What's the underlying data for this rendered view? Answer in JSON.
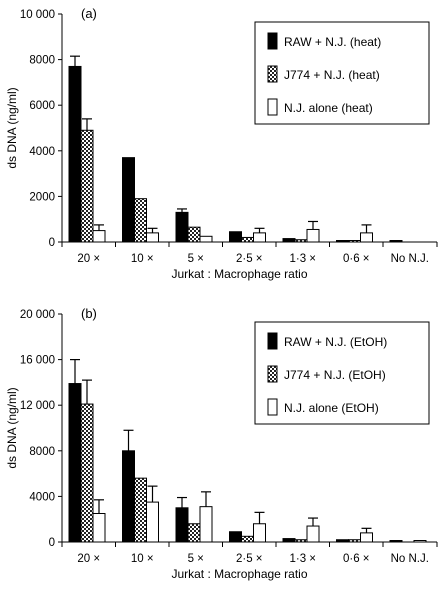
{
  "chart_data": [
    {
      "type": "bar",
      "panel_label": "(a)",
      "categories": [
        "20 ×",
        "10 ×",
        "5 ×",
        "2·5 ×",
        "1·3 ×",
        "0·6 ×",
        "No N.J."
      ],
      "xlabel": "Jurkat : Macrophage ratio",
      "ylabel": "ds DNA (ng/ml)",
      "ylim": [
        0,
        10000
      ],
      "yticks": [
        "0",
        "2000",
        "4000",
        "6000",
        "8000",
        "10 000"
      ],
      "ytick_values": [
        0,
        2000,
        4000,
        6000,
        8000,
        10000
      ],
      "legend_position": "top-right",
      "series": [
        {
          "name": "RAW + N.J. (heat)",
          "fill": "black",
          "values": [
            7700,
            3700,
            1300,
            450,
            150,
            50,
            50
          ],
          "errors": [
            450,
            0,
            150,
            0,
            0,
            0,
            0
          ]
        },
        {
          "name": "J774 + N.J. (heat)",
          "fill": "checker",
          "values": [
            4900,
            1900,
            650,
            200,
            100,
            50,
            null
          ],
          "errors": [
            500,
            0,
            0,
            0,
            0,
            0,
            null
          ]
        },
        {
          "name": "N.J. alone (heat)",
          "fill": "white",
          "values": [
            500,
            400,
            250,
            400,
            550,
            400,
            null
          ],
          "errors": [
            250,
            200,
            0,
            200,
            350,
            350,
            null
          ]
        }
      ]
    },
    {
      "type": "bar",
      "panel_label": "(b)",
      "categories": [
        "20 ×",
        "10 ×",
        "5 ×",
        "2·5 ×",
        "1·3 ×",
        "0·6 ×",
        "No N.J."
      ],
      "xlabel": "Jurkat : Macrophage ratio",
      "ylabel": "ds DNA (ng/ml)",
      "ylim": [
        0,
        20000
      ],
      "yticks": [
        "0",
        "4000",
        "8000",
        "12 000",
        "16 000",
        "20 000"
      ],
      "ytick_values": [
        0,
        4000,
        8000,
        12000,
        16000,
        20000
      ],
      "legend_position": "top-right",
      "series": [
        {
          "name": "RAW + N.J. (EtOH)",
          "fill": "black",
          "values": [
            13900,
            8000,
            3000,
            900,
            300,
            200,
            50
          ],
          "errors": [
            2100,
            1800,
            900,
            0,
            0,
            0,
            0
          ]
        },
        {
          "name": "J774 + N.J. (EtOH)",
          "fill": "checker",
          "values": [
            12100,
            5600,
            1600,
            500,
            200,
            200,
            null
          ],
          "errors": [
            2100,
            0,
            0,
            0,
            0,
            0,
            null
          ]
        },
        {
          "name": "N.J. alone (EtOH)",
          "fill": "white",
          "values": [
            2500,
            3500,
            3100,
            1600,
            1400,
            800,
            50
          ],
          "errors": [
            1200,
            1400,
            1300,
            1000,
            700,
            400,
            0
          ]
        }
      ]
    }
  ]
}
